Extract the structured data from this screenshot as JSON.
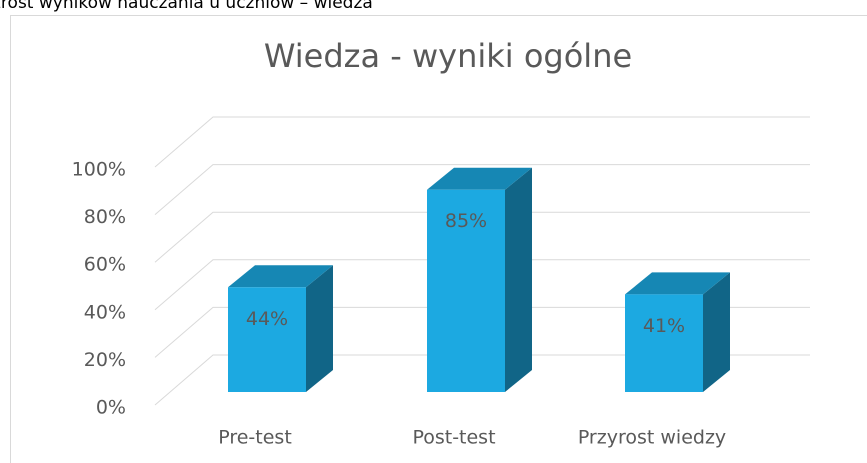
{
  "caption": "zrost wyników nauczania u uczniów – wiedza",
  "chart_data": {
    "type": "bar3d",
    "title": "Wiedza - wyniki ogólne",
    "categories": [
      "Pre-test",
      "Post-test",
      "Przyrost wiedzy"
    ],
    "values": [
      44,
      85,
      41
    ],
    "value_labels": [
      "44%",
      "85%",
      "41%"
    ],
    "color": "#1ca9e1",
    "ylim": [
      0,
      100
    ],
    "yticks": [
      {
        "value": 0,
        "label": "0%"
      },
      {
        "value": 20,
        "label": "20%"
      },
      {
        "value": 40,
        "label": "40%"
      },
      {
        "value": 60,
        "label": "60%"
      },
      {
        "value": 80,
        "label": "80%"
      },
      {
        "value": 100,
        "label": "100%"
      }
    ],
    "grid": true
  }
}
